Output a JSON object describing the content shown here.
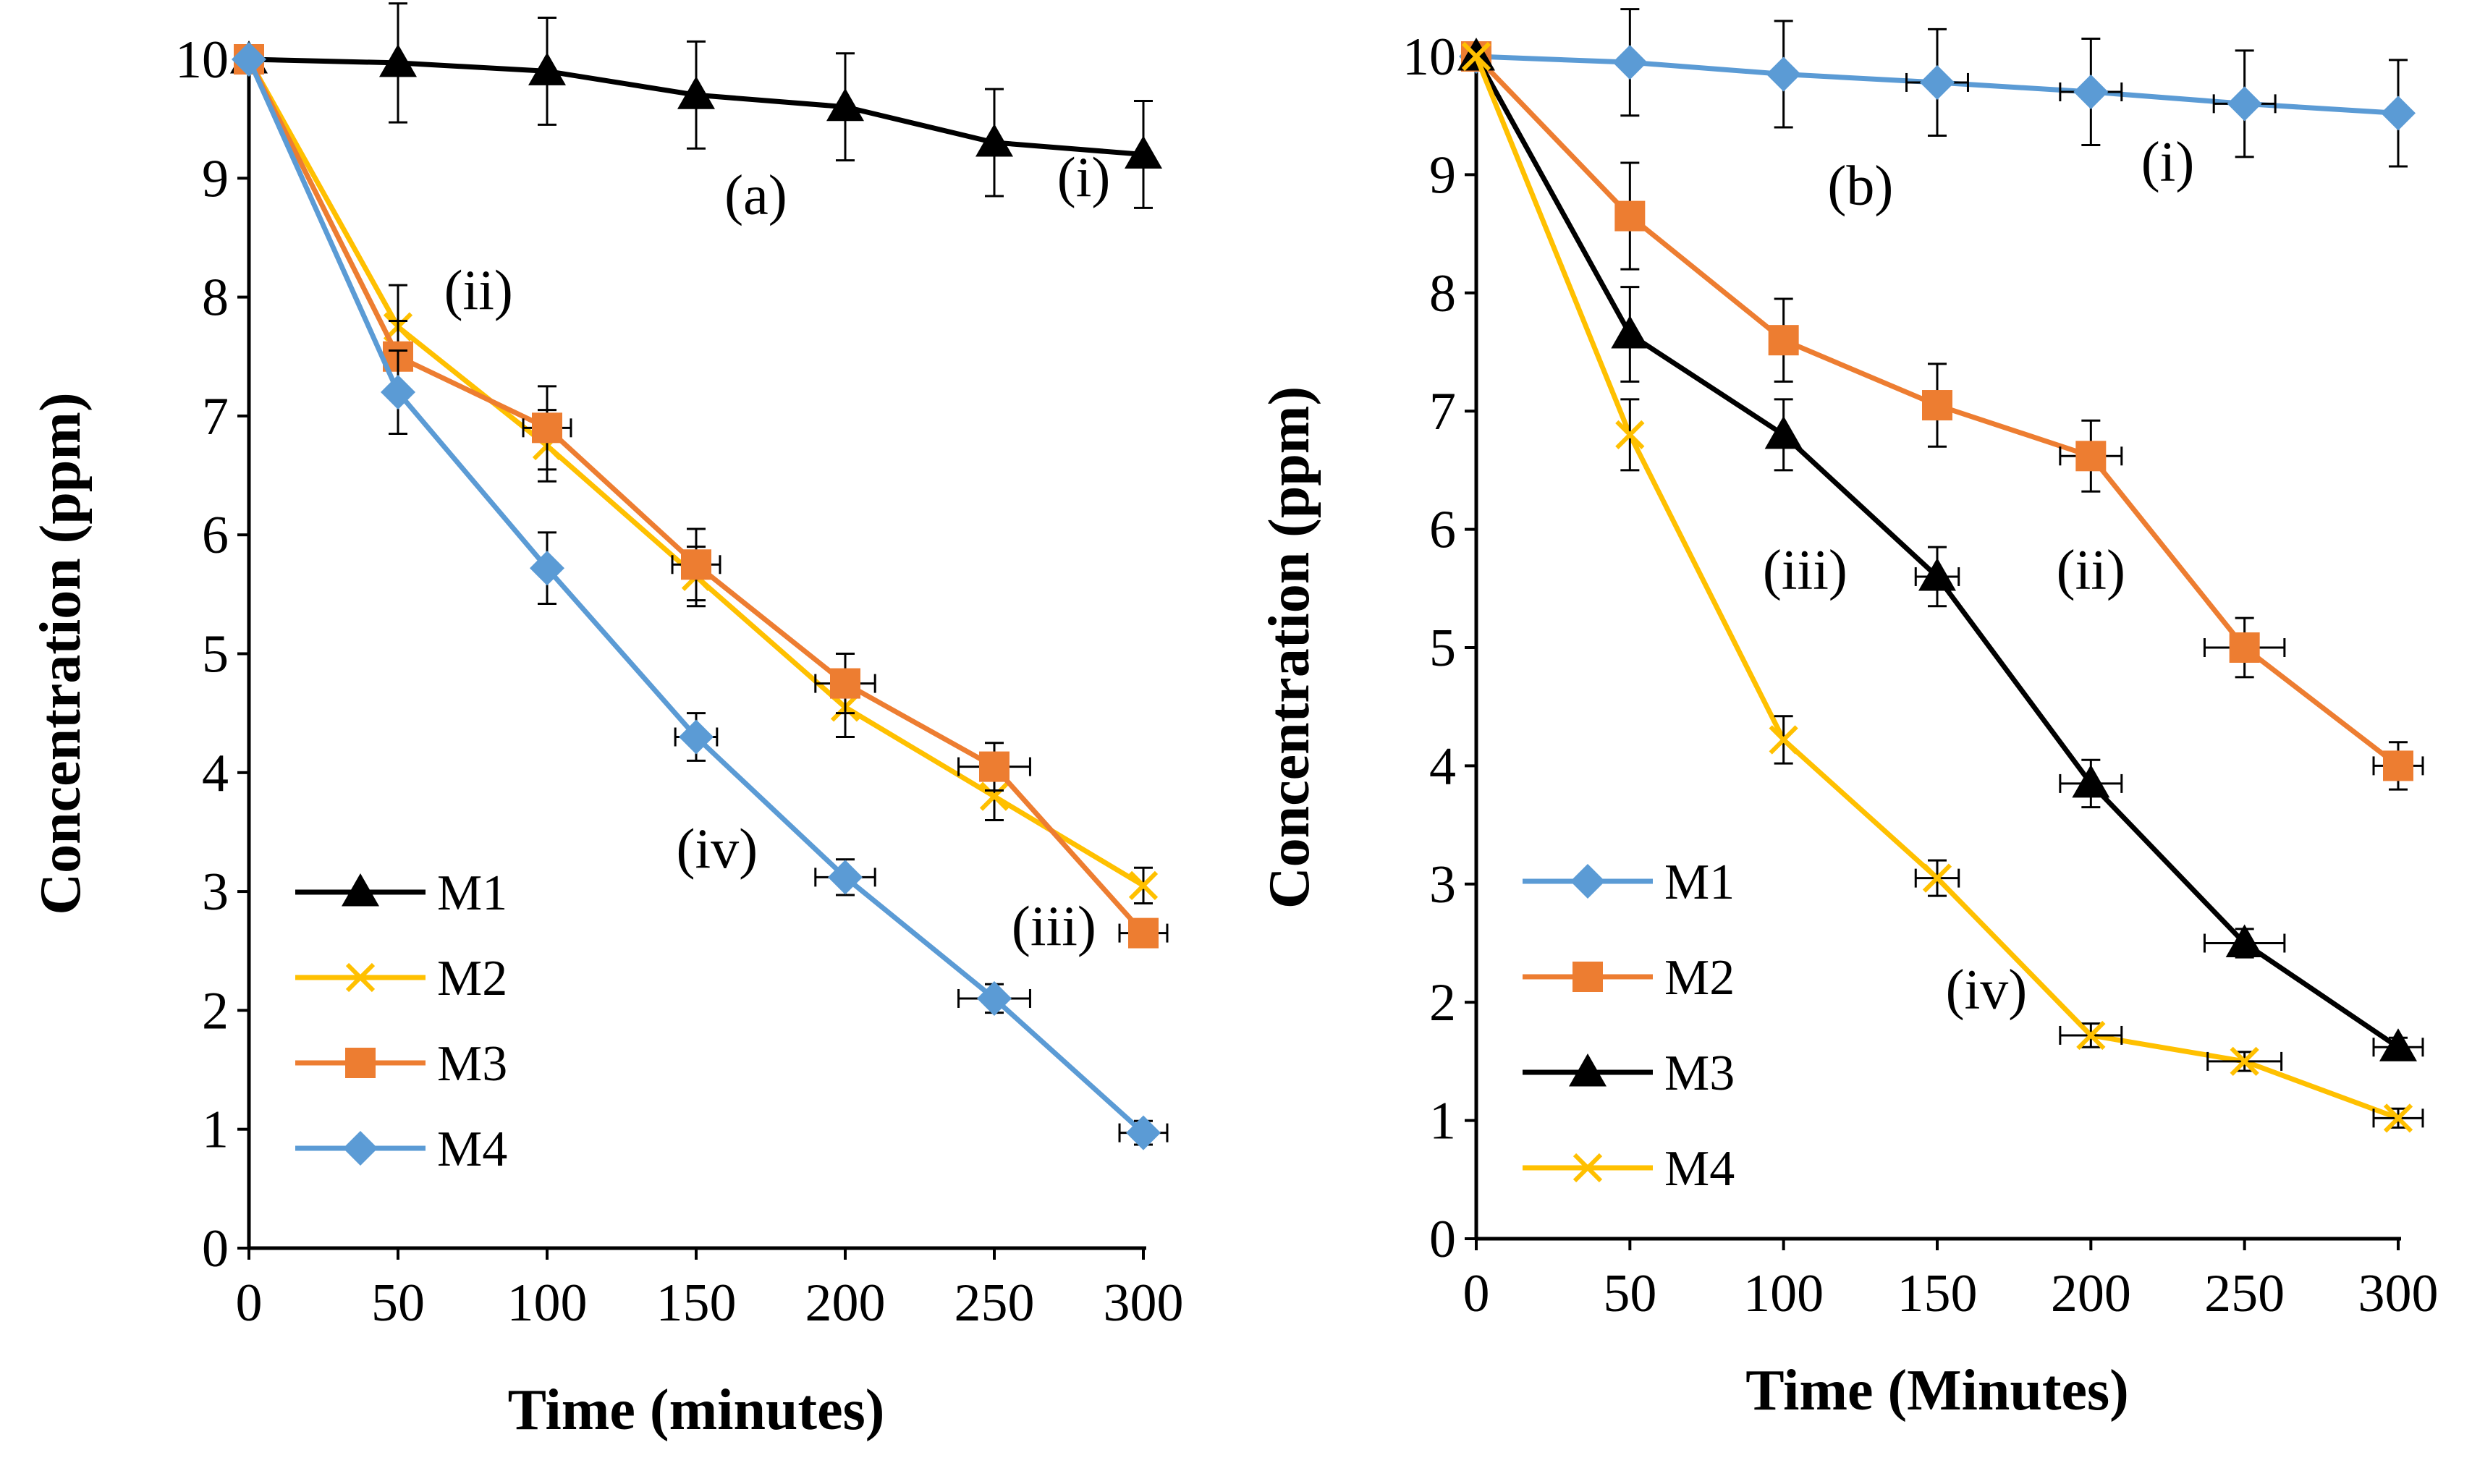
{
  "chart_data": [
    {
      "type": "line",
      "title": "(a)",
      "xlabel": "Time (minutes)",
      "ylabel": "Concentration (ppm)",
      "x": [
        0,
        50,
        100,
        150,
        200,
        250,
        300
      ],
      "xlim": [
        0,
        300
      ],
      "ylim": [
        0,
        10
      ],
      "xticks": [
        "0",
        "50",
        "100",
        "150",
        "200",
        "250",
        "300"
      ],
      "yticks": [
        "0",
        "1",
        "2",
        "3",
        "4",
        "5",
        "6",
        "7",
        "8",
        "9",
        "10"
      ],
      "legend_position": "bottom-left",
      "series": [
        {
          "name": "M1",
          "color": "#000000",
          "marker": "triangle",
          "values": [
            10,
            9.97,
            9.9,
            9.7,
            9.6,
            9.3,
            9.2
          ],
          "yerr": [
            0,
            0.5,
            0.45,
            0.45,
            0.45,
            0.45,
            0.45
          ],
          "xerr": [
            0,
            0,
            0,
            0,
            0,
            0,
            0
          ]
        },
        {
          "name": "M2",
          "color": "#FFC000",
          "marker": "x",
          "values": [
            10,
            7.75,
            6.75,
            5.65,
            4.55,
            3.8,
            3.05
          ],
          "yerr": [
            0,
            0.35,
            0.3,
            0.25,
            0.25,
            0.2,
            0.15
          ],
          "xerr": [
            0,
            0,
            0,
            0,
            0,
            0,
            0
          ]
        },
        {
          "name": "M3",
          "color": "#ED7D31",
          "marker": "square",
          "values": [
            10,
            7.5,
            6.9,
            5.75,
            4.75,
            4.05,
            2.65
          ],
          "yerr": [
            0,
            0.3,
            0.35,
            0.3,
            0.25,
            0.2,
            0.1
          ],
          "xerr": [
            0,
            0,
            8,
            8,
            10,
            12,
            8
          ]
        },
        {
          "name": "M4",
          "color": "#5B9BD5",
          "marker": "diamond",
          "values": [
            10,
            7.2,
            5.72,
            4.3,
            3.12,
            2.1,
            0.97
          ],
          "yerr": [
            0,
            0.35,
            0.3,
            0.2,
            0.15,
            0.12,
            0.1
          ],
          "xerr": [
            0,
            0,
            0,
            7,
            10,
            12,
            8
          ]
        }
      ],
      "annotations": [
        {
          "text": "(a)",
          "x": 170,
          "y": 8.7
        },
        {
          "text": "(i)",
          "x": 280,
          "y": 8.85
        },
        {
          "text": "(ii)",
          "x": 77,
          "y": 7.9
        },
        {
          "text": "(iii)",
          "x": 270,
          "y": 2.55
        },
        {
          "text": "(iv)",
          "x": 157,
          "y": 3.2
        }
      ]
    },
    {
      "type": "line",
      "title": "(b)",
      "xlabel": "Time (Minutes)",
      "ylabel": "Concentration (ppm)",
      "x": [
        0,
        50,
        100,
        150,
        200,
        250,
        300
      ],
      "xlim": [
        0,
        300
      ],
      "ylim": [
        0,
        10
      ],
      "xticks": [
        "0",
        "50",
        "100",
        "150",
        "200",
        "250",
        "300"
      ],
      "yticks": [
        "0",
        "1",
        "2",
        "3",
        "4",
        "5",
        "6",
        "7",
        "8",
        "9",
        "10"
      ],
      "legend_position": "bottom-left",
      "series": [
        {
          "name": "M1",
          "color": "#5B9BD5",
          "marker": "diamond",
          "values": [
            10,
            9.95,
            9.85,
            9.78,
            9.7,
            9.6,
            9.52
          ],
          "yerr": [
            0,
            0.45,
            0.45,
            0.45,
            0.45,
            0.45,
            0.45
          ],
          "xerr": [
            0,
            0,
            0,
            10,
            10,
            10,
            0
          ]
        },
        {
          "name": "M2",
          "color": "#ED7D31",
          "marker": "square",
          "values": [
            10,
            8.65,
            7.6,
            7.05,
            6.62,
            5.0,
            4.0
          ],
          "yerr": [
            0,
            0.45,
            0.35,
            0.35,
            0.3,
            0.25,
            0.2
          ],
          "xerr": [
            0,
            0,
            0,
            0,
            10,
            13,
            8
          ]
        },
        {
          "name": "M3",
          "color": "#000000",
          "marker": "triangle",
          "values": [
            10,
            7.65,
            6.8,
            5.6,
            3.85,
            2.5,
            1.62
          ],
          "yerr": [
            0,
            0.4,
            0.3,
            0.25,
            0.2,
            0.12,
            0.08
          ],
          "xerr": [
            0,
            0,
            0,
            7,
            10,
            13,
            8
          ]
        },
        {
          "name": "M4",
          "color": "#FFC000",
          "marker": "x",
          "values": [
            10,
            6.8,
            4.22,
            3.05,
            1.72,
            1.5,
            1.02
          ],
          "yerr": [
            0,
            0.3,
            0.2,
            0.15,
            0.1,
            0.08,
            0.08
          ],
          "xerr": [
            0,
            0,
            0,
            7,
            10,
            12,
            8
          ]
        }
      ],
      "annotations": [
        {
          "text": "(b)",
          "x": 125,
          "y": 8.75
        },
        {
          "text": "(i)",
          "x": 225,
          "y": 8.95
        },
        {
          "text": "(ii)",
          "x": 200,
          "y": 5.5
        },
        {
          "text": "(iii)",
          "x": 107,
          "y": 5.5
        },
        {
          "text": "(iv)",
          "x": 166,
          "y": 1.95
        }
      ]
    }
  ]
}
